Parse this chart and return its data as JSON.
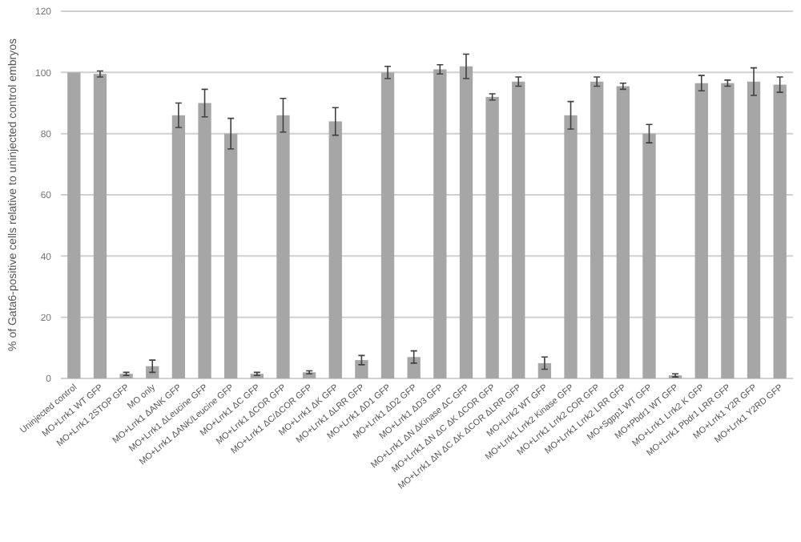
{
  "chart_data": {
    "type": "bar",
    "ylabel": "% of Gata6-positive cells relative to uninjected control embryos",
    "categories": [
      "Uninjected control",
      "MO+Lrrk1 WT GFP",
      "MO+Lrrk1 2STOP GFP",
      "MO only",
      "MO+Lrrk1 ΔANK GFP",
      "MO+Lrrk1 ΔLeucine GFP",
      "MO+Lrrk1 ΔANK/Leucine GFP",
      "MO+Lrrk1 ΔC GFP",
      "MO+Lrrk1 ΔCOR GFP",
      "MO+Lrrk1 ΔC/ΔCOR GFP",
      "MO+Lrrk1 ΔK GFP",
      "MO+Lrrk1 ΔLRR GFP",
      "MO+Lrrk1 ΔD1 GFP",
      "MO+Lrrk1 ΔD2 GFP",
      "MO+Lrrk1 ΔD3 GFP",
      "MO+Lrrk1 ΔN ΔKinase ΔC GFP",
      "MO+Lrrk1 ΔN ΔC ΔK ΔCOR GFP",
      "MO+Lrrk1 ΔN ΔC ΔK ΔCOR ΔLRR GFP",
      "MO+Lrrk2 WT GFP",
      "MO+Lrrk1 Lrrk2 Kinase GFP",
      "MO+Lrrk1 Lrrk2 COR GFP",
      "MO+Lrrk1 Lrrk2 LRR GFP",
      "MO+Sgpp1 WT GFP",
      "MO+Pbdr1 WT GFP",
      "MO+Lrrk1 Lrrk2 K GFP",
      "MO+Lrrk1 Pbdr1 LRR GFP",
      "MO+Lrrk1 Y2R GFP",
      "MO+Lrrk1 Y2RD GFP"
    ],
    "values": [
      100,
      99.5,
      1.5,
      4,
      86,
      90,
      80,
      1.5,
      86,
      2,
      84,
      6,
      100,
      7,
      101,
      102,
      92,
      97,
      5,
      86,
      97,
      95.5,
      80,
      1,
      96.5,
      96.5,
      97,
      96
    ],
    "errors": [
      null,
      1,
      0.5,
      2,
      4,
      4.5,
      5,
      0.5,
      5.5,
      0.5,
      4.5,
      1.5,
      2,
      2,
      1.5,
      4,
      1,
      1.5,
      2,
      4.5,
      1.5,
      1,
      3,
      0.5,
      2.5,
      1,
      4.5,
      2.5
    ],
    "color": "#a6a6a6",
    "ylim": [
      0,
      120
    ],
    "yticks": [
      0,
      20,
      40,
      60,
      80,
      100,
      120
    ],
    "grid": "y"
  }
}
